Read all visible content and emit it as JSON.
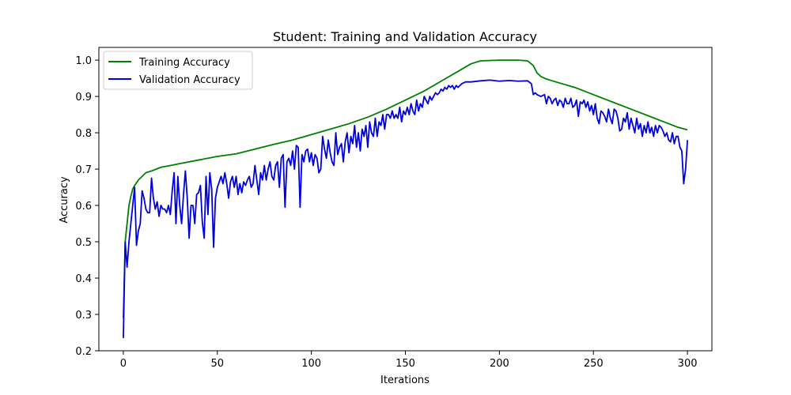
{
  "chart_data": {
    "type": "line",
    "title": "Student: Training and Validation Accuracy",
    "xlabel": "Iterations",
    "ylabel": "Accuracy",
    "xlim": [
      -13,
      313
    ],
    "ylim": [
      0.2,
      1.035
    ],
    "xticks": [
      0,
      50,
      100,
      150,
      200,
      250,
      300
    ],
    "yticks": [
      0.2,
      0.3,
      0.4,
      0.5,
      0.6,
      0.7,
      0.8,
      0.9,
      1.0
    ],
    "ytick_labels": [
      "0.2",
      "0.3",
      "0.4",
      "0.5",
      "0.6",
      "0.7",
      "0.8",
      "0.9",
      "1.0"
    ],
    "grid": false,
    "legend_position": "upper-left",
    "series": [
      {
        "name": "Training Accuracy",
        "color": "#008000",
        "points": [
          [
            0,
            0.29
          ],
          [
            1,
            0.5
          ],
          [
            2,
            0.55
          ],
          [
            3,
            0.6
          ],
          [
            4,
            0.625
          ],
          [
            5,
            0.645
          ],
          [
            6,
            0.655
          ],
          [
            8,
            0.67
          ],
          [
            10,
            0.68
          ],
          [
            12,
            0.69
          ],
          [
            15,
            0.695
          ],
          [
            20,
            0.705
          ],
          [
            25,
            0.71
          ],
          [
            30,
            0.715
          ],
          [
            40,
            0.725
          ],
          [
            50,
            0.735
          ],
          [
            60,
            0.742
          ],
          [
            70,
            0.755
          ],
          [
            80,
            0.768
          ],
          [
            90,
            0.78
          ],
          [
            100,
            0.795
          ],
          [
            110,
            0.81
          ],
          [
            120,
            0.825
          ],
          [
            130,
            0.843
          ],
          [
            140,
            0.865
          ],
          [
            150,
            0.89
          ],
          [
            160,
            0.915
          ],
          [
            170,
            0.945
          ],
          [
            180,
            0.975
          ],
          [
            185,
            0.99
          ],
          [
            190,
            0.998
          ],
          [
            200,
            1.0
          ],
          [
            210,
            1.0
          ],
          [
            215,
            0.998
          ],
          [
            218,
            0.985
          ],
          [
            220,
            0.965
          ],
          [
            222,
            0.955
          ],
          [
            225,
            0.948
          ],
          [
            230,
            0.94
          ],
          [
            240,
            0.925
          ],
          [
            250,
            0.905
          ],
          [
            260,
            0.885
          ],
          [
            270,
            0.865
          ],
          [
            280,
            0.845
          ],
          [
            290,
            0.825
          ],
          [
            295,
            0.815
          ],
          [
            300,
            0.808
          ]
        ]
      },
      {
        "name": "Validation Accuracy",
        "color": "#0000e0",
        "points": [
          [
            0,
            0.235
          ],
          [
            1,
            0.5
          ],
          [
            2,
            0.43
          ],
          [
            3,
            0.5
          ],
          [
            4,
            0.55
          ],
          [
            5,
            0.6
          ],
          [
            6,
            0.65
          ],
          [
            7,
            0.49
          ],
          [
            8,
            0.53
          ],
          [
            9,
            0.55
          ],
          [
            10,
            0.64
          ],
          [
            11,
            0.62
          ],
          [
            12,
            0.59
          ],
          [
            13,
            0.58
          ],
          [
            14,
            0.58
          ],
          [
            15,
            0.675
          ],
          [
            16,
            0.62
          ],
          [
            17,
            0.59
          ],
          [
            18,
            0.61
          ],
          [
            19,
            0.57
          ],
          [
            20,
            0.6
          ],
          [
            21,
            0.59
          ],
          [
            22,
            0.59
          ],
          [
            23,
            0.58
          ],
          [
            24,
            0.6
          ],
          [
            25,
            0.575
          ],
          [
            26,
            0.64
          ],
          [
            27,
            0.69
          ],
          [
            28,
            0.55
          ],
          [
            29,
            0.68
          ],
          [
            30,
            0.6
          ],
          [
            31,
            0.55
          ],
          [
            32,
            0.63
          ],
          [
            33,
            0.695
          ],
          [
            34,
            0.62
          ],
          [
            35,
            0.51
          ],
          [
            36,
            0.6
          ],
          [
            37,
            0.6
          ],
          [
            38,
            0.55
          ],
          [
            39,
            0.63
          ],
          [
            40,
            0.635
          ],
          [
            41,
            0.655
          ],
          [
            42,
            0.555
          ],
          [
            43,
            0.51
          ],
          [
            44,
            0.68
          ],
          [
            45,
            0.575
          ],
          [
            46,
            0.69
          ],
          [
            47,
            0.645
          ],
          [
            48,
            0.485
          ],
          [
            49,
            0.62
          ],
          [
            50,
            0.65
          ],
          [
            51,
            0.665
          ],
          [
            52,
            0.68
          ],
          [
            53,
            0.66
          ],
          [
            54,
            0.69
          ],
          [
            55,
            0.66
          ],
          [
            56,
            0.62
          ],
          [
            57,
            0.665
          ],
          [
            58,
            0.68
          ],
          [
            59,
            0.65
          ],
          [
            60,
            0.68
          ],
          [
            61,
            0.63
          ],
          [
            62,
            0.66
          ],
          [
            63,
            0.635
          ],
          [
            64,
            0.665
          ],
          [
            65,
            0.655
          ],
          [
            66,
            0.67
          ],
          [
            67,
            0.68
          ],
          [
            68,
            0.65
          ],
          [
            69,
            0.66
          ],
          [
            70,
            0.71
          ],
          [
            71,
            0.67
          ],
          [
            72,
            0.63
          ],
          [
            73,
            0.69
          ],
          [
            74,
            0.67
          ],
          [
            75,
            0.71
          ],
          [
            76,
            0.67
          ],
          [
            77,
            0.7
          ],
          [
            78,
            0.72
          ],
          [
            79,
            0.68
          ],
          [
            80,
            0.67
          ],
          [
            81,
            0.71
          ],
          [
            82,
            0.72
          ],
          [
            83,
            0.65
          ],
          [
            84,
            0.73
          ],
          [
            85,
            0.74
          ],
          [
            86,
            0.595
          ],
          [
            87,
            0.72
          ],
          [
            88,
            0.73
          ],
          [
            89,
            0.71
          ],
          [
            90,
            0.75
          ],
          [
            91,
            0.7
          ],
          [
            92,
            0.765
          ],
          [
            93,
            0.76
          ],
          [
            94,
            0.595
          ],
          [
            95,
            0.74
          ],
          [
            96,
            0.72
          ],
          [
            97,
            0.75
          ],
          [
            98,
            0.755
          ],
          [
            99,
            0.72
          ],
          [
            100,
            0.745
          ],
          [
            101,
            0.71
          ],
          [
            102,
            0.74
          ],
          [
            103,
            0.73
          ],
          [
            104,
            0.69
          ],
          [
            105,
            0.7
          ],
          [
            106,
            0.79
          ],
          [
            107,
            0.755
          ],
          [
            108,
            0.73
          ],
          [
            109,
            0.78
          ],
          [
            110,
            0.745
          ],
          [
            111,
            0.72
          ],
          [
            112,
            0.71
          ],
          [
            113,
            0.8
          ],
          [
            114,
            0.74
          ],
          [
            115,
            0.76
          ],
          [
            116,
            0.77
          ],
          [
            117,
            0.72
          ],
          [
            118,
            0.775
          ],
          [
            119,
            0.8
          ],
          [
            120,
            0.745
          ],
          [
            121,
            0.79
          ],
          [
            122,
            0.77
          ],
          [
            123,
            0.82
          ],
          [
            124,
            0.76
          ],
          [
            125,
            0.8
          ],
          [
            126,
            0.75
          ],
          [
            127,
            0.81
          ],
          [
            128,
            0.79
          ],
          [
            129,
            0.82
          ],
          [
            130,
            0.76
          ],
          [
            131,
            0.83
          ],
          [
            132,
            0.8
          ],
          [
            133,
            0.79
          ],
          [
            134,
            0.84
          ],
          [
            135,
            0.79
          ],
          [
            136,
            0.83
          ],
          [
            137,
            0.82
          ],
          [
            138,
            0.85
          ],
          [
            139,
            0.81
          ],
          [
            140,
            0.85
          ],
          [
            141,
            0.85
          ],
          [
            142,
            0.84
          ],
          [
            143,
            0.86
          ],
          [
            144,
            0.84
          ],
          [
            145,
            0.85
          ],
          [
            146,
            0.84
          ],
          [
            147,
            0.87
          ],
          [
            148,
            0.83
          ],
          [
            149,
            0.86
          ],
          [
            150,
            0.85
          ],
          [
            151,
            0.87
          ],
          [
            152,
            0.85
          ],
          [
            153,
            0.88
          ],
          [
            154,
            0.86
          ],
          [
            155,
            0.85
          ],
          [
            156,
            0.89
          ],
          [
            157,
            0.86
          ],
          [
            158,
            0.88
          ],
          [
            159,
            0.87
          ],
          [
            160,
            0.9
          ],
          [
            161,
            0.89
          ],
          [
            162,
            0.88
          ],
          [
            163,
            0.9
          ],
          [
            164,
            0.89
          ],
          [
            165,
            0.9
          ],
          [
            166,
            0.91
          ],
          [
            167,
            0.905
          ],
          [
            168,
            0.91
          ],
          [
            169,
            0.92
          ],
          [
            170,
            0.915
          ],
          [
            171,
            0.925
          ],
          [
            172,
            0.92
          ],
          [
            173,
            0.93
          ],
          [
            174,
            0.925
          ],
          [
            175,
            0.93
          ],
          [
            176,
            0.92
          ],
          [
            177,
            0.93
          ],
          [
            178,
            0.925
          ],
          [
            179,
            0.93
          ],
          [
            180,
            0.935
          ],
          [
            182,
            0.94
          ],
          [
            185,
            0.94
          ],
          [
            190,
            0.943
          ],
          [
            195,
            0.945
          ],
          [
            200,
            0.942
          ],
          [
            205,
            0.944
          ],
          [
            210,
            0.942
          ],
          [
            215,
            0.943
          ],
          [
            217,
            0.935
          ],
          [
            218,
            0.905
          ],
          [
            219,
            0.91
          ],
          [
            220,
            0.905
          ],
          [
            222,
            0.9
          ],
          [
            224,
            0.905
          ],
          [
            225,
            0.88
          ],
          [
            226,
            0.9
          ],
          [
            227,
            0.895
          ],
          [
            228,
            0.88
          ],
          [
            229,
            0.89
          ],
          [
            230,
            0.895
          ],
          [
            231,
            0.875
          ],
          [
            232,
            0.89
          ],
          [
            233,
            0.885
          ],
          [
            234,
            0.87
          ],
          [
            235,
            0.895
          ],
          [
            236,
            0.88
          ],
          [
            237,
            0.88
          ],
          [
            238,
            0.895
          ],
          [
            239,
            0.87
          ],
          [
            240,
            0.875
          ],
          [
            241,
            0.89
          ],
          [
            242,
            0.845
          ],
          [
            243,
            0.885
          ],
          [
            244,
            0.88
          ],
          [
            245,
            0.89
          ],
          [
            246,
            0.87
          ],
          [
            247,
            0.885
          ],
          [
            248,
            0.86
          ],
          [
            249,
            0.875
          ],
          [
            250,
            0.85
          ],
          [
            251,
            0.88
          ],
          [
            252,
            0.84
          ],
          [
            253,
            0.825
          ],
          [
            254,
            0.86
          ],
          [
            255,
            0.855
          ],
          [
            256,
            0.845
          ],
          [
            257,
            0.83
          ],
          [
            258,
            0.865
          ],
          [
            259,
            0.84
          ],
          [
            260,
            0.825
          ],
          [
            261,
            0.865
          ],
          [
            262,
            0.86
          ],
          [
            263,
            0.84
          ],
          [
            264,
            0.805
          ],
          [
            265,
            0.81
          ],
          [
            266,
            0.84
          ],
          [
            267,
            0.83
          ],
          [
            268,
            0.855
          ],
          [
            269,
            0.81
          ],
          [
            270,
            0.84
          ],
          [
            271,
            0.82
          ],
          [
            272,
            0.8
          ],
          [
            273,
            0.84
          ],
          [
            274,
            0.81
          ],
          [
            275,
            0.825
          ],
          [
            276,
            0.79
          ],
          [
            277,
            0.82
          ],
          [
            278,
            0.8
          ],
          [
            279,
            0.83
          ],
          [
            280,
            0.8
          ],
          [
            281,
            0.815
          ],
          [
            282,
            0.79
          ],
          [
            283,
            0.82
          ],
          [
            284,
            0.8
          ],
          [
            285,
            0.82
          ],
          [
            286,
            0.815
          ],
          [
            287,
            0.805
          ],
          [
            288,
            0.79
          ],
          [
            289,
            0.8
          ],
          [
            290,
            0.78
          ],
          [
            291,
            0.775
          ],
          [
            292,
            0.8
          ],
          [
            293,
            0.77
          ],
          [
            294,
            0.79
          ],
          [
            295,
            0.79
          ],
          [
            296,
            0.76
          ],
          [
            297,
            0.75
          ],
          [
            298,
            0.66
          ],
          [
            299,
            0.7
          ],
          [
            300,
            0.78
          ]
        ]
      }
    ]
  }
}
